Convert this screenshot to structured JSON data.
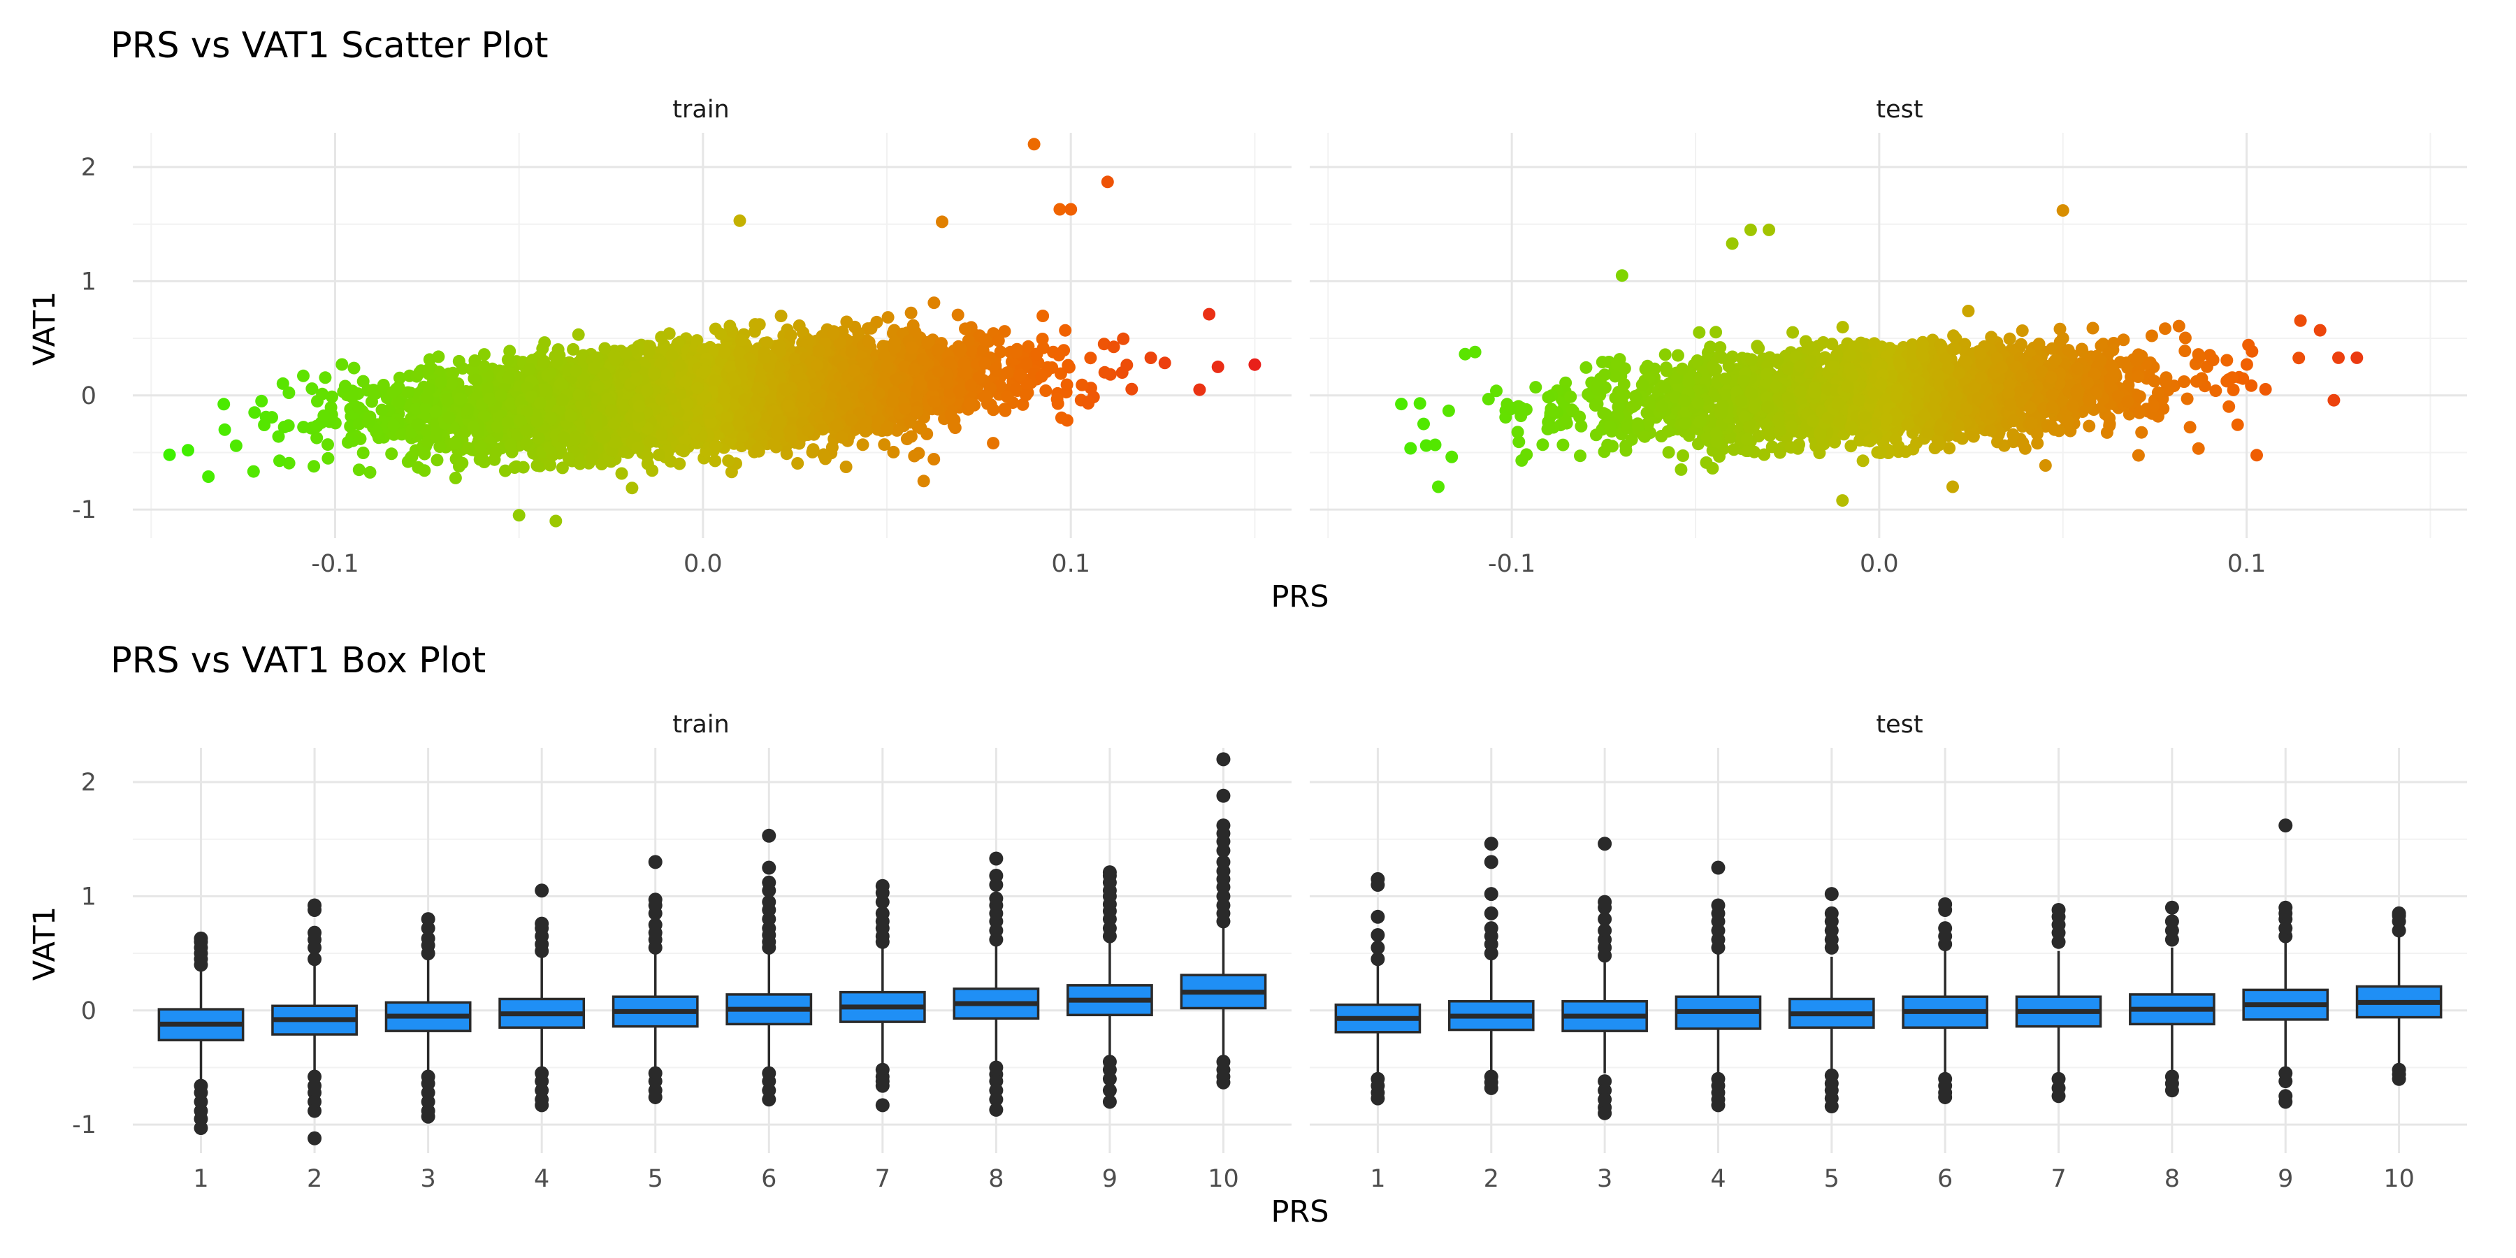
{
  "colors": {
    "low": "#3ef000",
    "mid": "#c0b800",
    "high": "#e8201a",
    "box_fill": "#1f8ff5",
    "box_line": "#2a2a2a",
    "grid_major": "#e6e6e6",
    "grid_minor": "#f2f2f2"
  },
  "chart_data": [
    {
      "type": "scatter",
      "title": "PRS vs VAT1 Scatter Plot",
      "xlabel": "PRS",
      "ylabel": "VAT1",
      "color_encoding": "PRS (green low → orange/red high)",
      "facets": [
        "train",
        "test"
      ],
      "x_ticks": [
        -0.1,
        0.0,
        0.1
      ],
      "x_tick_labels": [
        "-0.1",
        "0.0",
        "0.1"
      ],
      "y_ticks": [
        -1,
        0,
        1,
        2
      ],
      "y_tick_labels": [
        "-1",
        "0",
        "1",
        "2"
      ],
      "grid": true,
      "panels": [
        {
          "facet": "train",
          "xlim": [
            -0.155,
            0.16
          ],
          "ylim": [
            -1.25,
            2.3
          ],
          "n_points_approx": 6000,
          "trend": {
            "slope": 2.0,
            "intercept": 0.0,
            "residual_sd": 0.2
          },
          "notable_points": [
            [
              -0.145,
              -0.52
            ],
            [
              -0.14,
              -0.48
            ],
            [
              -0.13,
              -0.3
            ],
            [
              -0.12,
              -0.05
            ],
            [
              0.09,
              2.2
            ],
            [
              0.097,
              1.63
            ],
            [
              0.1,
              1.63
            ],
            [
              0.11,
              1.87
            ],
            [
              0.01,
              1.53
            ],
            [
              0.065,
              1.52
            ],
            [
              0.15,
              0.27
            ],
            [
              0.14,
              0.25
            ],
            [
              0.135,
              0.05
            ],
            [
              -0.05,
              -1.05
            ],
            [
              -0.04,
              -1.1
            ],
            [
              0.06,
              -0.75
            ]
          ]
        },
        {
          "facet": "test",
          "xlim": [
            -0.155,
            0.16
          ],
          "ylim": [
            -1.25,
            2.3
          ],
          "n_points_approx": 2500,
          "trend": {
            "slope": 1.4,
            "intercept": 0.0,
            "residual_sd": 0.2
          },
          "notable_points": [
            [
              -0.125,
              -0.07
            ],
            [
              -0.124,
              -0.25
            ],
            [
              -0.12,
              -0.8
            ],
            [
              -0.11,
              0.38
            ],
            [
              -0.03,
              1.45
            ],
            [
              -0.035,
              1.45
            ],
            [
              -0.04,
              1.33
            ],
            [
              0.05,
              1.62
            ],
            [
              0.13,
              0.33
            ],
            [
              0.125,
              0.33
            ],
            [
              0.12,
              0.57
            ],
            [
              -0.07,
              1.05
            ],
            [
              -0.01,
              -0.92
            ],
            [
              0.02,
              -0.8
            ]
          ]
        }
      ]
    },
    {
      "type": "box",
      "title": "PRS vs VAT1 Box Plot",
      "xlabel": "PRS",
      "ylabel": "VAT1",
      "categories": [
        "1",
        "2",
        "3",
        "4",
        "5",
        "6",
        "7",
        "8",
        "9",
        "10"
      ],
      "y_ticks": [
        -1,
        0,
        1,
        2
      ],
      "y_tick_labels": [
        "-1",
        "0",
        "1",
        "2"
      ],
      "ylim": [
        -1.25,
        2.3
      ],
      "grid": true,
      "panels": [
        {
          "facet": "train",
          "boxes": [
            {
              "q1": -0.26,
              "median": -0.12,
              "q3": 0.01,
              "whisker_low": -0.63,
              "whisker_high": 0.37,
              "outliers": [
                0.4,
                0.45,
                0.5,
                0.55,
                0.6,
                0.63,
                -0.66,
                -0.72,
                -0.8,
                -0.88,
                -0.95,
                -1.03
              ]
            },
            {
              "q1": -0.21,
              "median": -0.08,
              "q3": 0.04,
              "whisker_low": -0.55,
              "whisker_high": 0.4,
              "outliers": [
                0.45,
                0.55,
                0.62,
                0.68,
                0.88,
                0.92,
                -0.58,
                -0.66,
                -0.72,
                -0.8,
                -0.88,
                -1.12
              ]
            },
            {
              "q1": -0.18,
              "median": -0.05,
              "q3": 0.07,
              "whisker_low": -0.55,
              "whisker_high": 0.45,
              "outliers": [
                0.5,
                0.57,
                0.63,
                0.72,
                0.8,
                -0.58,
                -0.64,
                -0.72,
                -0.8,
                -0.88,
                -0.93
              ]
            },
            {
              "q1": -0.15,
              "median": -0.03,
              "q3": 0.1,
              "whisker_low": -0.52,
              "whisker_high": 0.47,
              "outliers": [
                0.52,
                0.58,
                0.65,
                0.72,
                0.76,
                1.05,
                -0.55,
                -0.62,
                -0.7,
                -0.78,
                -0.83
              ]
            },
            {
              "q1": -0.14,
              "median": -0.01,
              "q3": 0.12,
              "whisker_low": -0.5,
              "whisker_high": 0.5,
              "outliers": [
                0.55,
                0.62,
                0.68,
                0.75,
                0.85,
                0.92,
                0.97,
                1.3,
                -0.55,
                -0.62,
                -0.7,
                -0.76
              ]
            },
            {
              "q1": -0.12,
              "median": 0.01,
              "q3": 0.14,
              "whisker_low": -0.5,
              "whisker_high": 0.52,
              "outliers": [
                0.55,
                0.6,
                0.66,
                0.72,
                0.8,
                0.88,
                0.95,
                1.05,
                1.12,
                1.25,
                1.53,
                -0.55,
                -0.62,
                -0.7,
                -0.78
              ]
            },
            {
              "q1": -0.1,
              "median": 0.03,
              "q3": 0.16,
              "whisker_low": -0.48,
              "whisker_high": 0.55,
              "outliers": [
                0.6,
                0.65,
                0.72,
                0.78,
                0.85,
                0.95,
                1.03,
                1.09,
                -0.52,
                -0.58,
                -0.62,
                -0.66,
                -0.83
              ]
            },
            {
              "q1": -0.07,
              "median": 0.06,
              "q3": 0.19,
              "whisker_low": -0.45,
              "whisker_high": 0.58,
              "outliers": [
                0.62,
                0.7,
                0.78,
                0.85,
                0.92,
                0.98,
                1.1,
                1.18,
                1.33,
                -0.5,
                -0.56,
                -0.62,
                -0.7,
                -0.78,
                -0.87
              ]
            },
            {
              "q1": -0.04,
              "median": 0.09,
              "q3": 0.22,
              "whisker_low": -0.42,
              "whisker_high": 0.62,
              "outliers": [
                0.65,
                0.72,
                0.8,
                0.87,
                0.93,
                1.0,
                1.05,
                1.12,
                1.18,
                1.21,
                -0.45,
                -0.52,
                -0.6,
                -0.7,
                -0.8
              ]
            },
            {
              "q1": 0.02,
              "median": 0.16,
              "q3": 0.31,
              "whisker_low": -0.42,
              "whisker_high": 0.74,
              "outliers": [
                0.78,
                0.85,
                0.92,
                1.0,
                1.08,
                1.15,
                1.22,
                1.3,
                1.4,
                1.48,
                1.55,
                1.62,
                1.88,
                2.2,
                -0.45,
                -0.52,
                -0.58,
                -0.63
              ]
            }
          ]
        },
        {
          "facet": "test",
          "boxes": [
            {
              "q1": -0.19,
              "median": -0.07,
              "q3": 0.05,
              "whisker_low": -0.55,
              "whisker_high": 0.4,
              "outliers": [
                0.45,
                0.55,
                0.66,
                0.82,
                1.1,
                1.15,
                -0.6,
                -0.66,
                -0.72,
                -0.77
              ]
            },
            {
              "q1": -0.17,
              "median": -0.05,
              "q3": 0.08,
              "whisker_low": -0.55,
              "whisker_high": 0.45,
              "outliers": [
                0.5,
                0.58,
                0.65,
                0.72,
                0.85,
                1.02,
                1.3,
                1.46,
                -0.58,
                -0.63,
                -0.68
              ]
            },
            {
              "q1": -0.18,
              "median": -0.05,
              "q3": 0.08,
              "whisker_low": -0.55,
              "whisker_high": 0.42,
              "outliers": [
                0.48,
                0.55,
                0.62,
                0.7,
                0.8,
                0.9,
                0.95,
                1.46,
                -0.62,
                -0.7,
                -0.78,
                -0.85,
                -0.9
              ]
            },
            {
              "q1": -0.16,
              "median": -0.01,
              "q3": 0.12,
              "whisker_low": -0.55,
              "whisker_high": 0.5,
              "outliers": [
                0.55,
                0.62,
                0.7,
                0.78,
                0.85,
                0.92,
                1.25,
                -0.6,
                -0.66,
                -0.72,
                -0.78,
                -0.83
              ]
            },
            {
              "q1": -0.15,
              "median": -0.03,
              "q3": 0.1,
              "whisker_low": -0.52,
              "whisker_high": 0.47,
              "outliers": [
                0.55,
                0.62,
                0.7,
                0.78,
                0.85,
                1.02,
                -0.57,
                -0.64,
                -0.7,
                -0.77,
                -0.84
              ]
            },
            {
              "q1": -0.15,
              "median": -0.01,
              "q3": 0.12,
              "whisker_low": -0.55,
              "whisker_high": 0.52,
              "outliers": [
                0.58,
                0.65,
                0.72,
                0.88,
                0.93,
                -0.6,
                -0.66,
                -0.72,
                -0.76
              ]
            },
            {
              "q1": -0.14,
              "median": -0.01,
              "q3": 0.12,
              "whisker_low": -0.55,
              "whisker_high": 0.52,
              "outliers": [
                0.6,
                0.68,
                0.75,
                0.82,
                0.88,
                -0.6,
                -0.68,
                -0.75
              ]
            },
            {
              "q1": -0.12,
              "median": 0.01,
              "q3": 0.14,
              "whisker_low": -0.52,
              "whisker_high": 0.55,
              "outliers": [
                0.62,
                0.7,
                0.78,
                0.9,
                -0.58,
                -0.64,
                -0.7
              ]
            },
            {
              "q1": -0.08,
              "median": 0.05,
              "q3": 0.18,
              "whisker_low": -0.5,
              "whisker_high": 0.6,
              "outliers": [
                0.65,
                0.72,
                0.8,
                0.85,
                0.9,
                1.62,
                -0.55,
                -0.62,
                -0.75,
                -0.8
              ]
            },
            {
              "q1": -0.06,
              "median": 0.07,
              "q3": 0.21,
              "whisker_low": -0.48,
              "whisker_high": 0.65,
              "outliers": [
                0.7,
                0.78,
                0.83,
                0.85,
                -0.52,
                -0.56,
                -0.6
              ]
            }
          ]
        }
      ]
    }
  ]
}
